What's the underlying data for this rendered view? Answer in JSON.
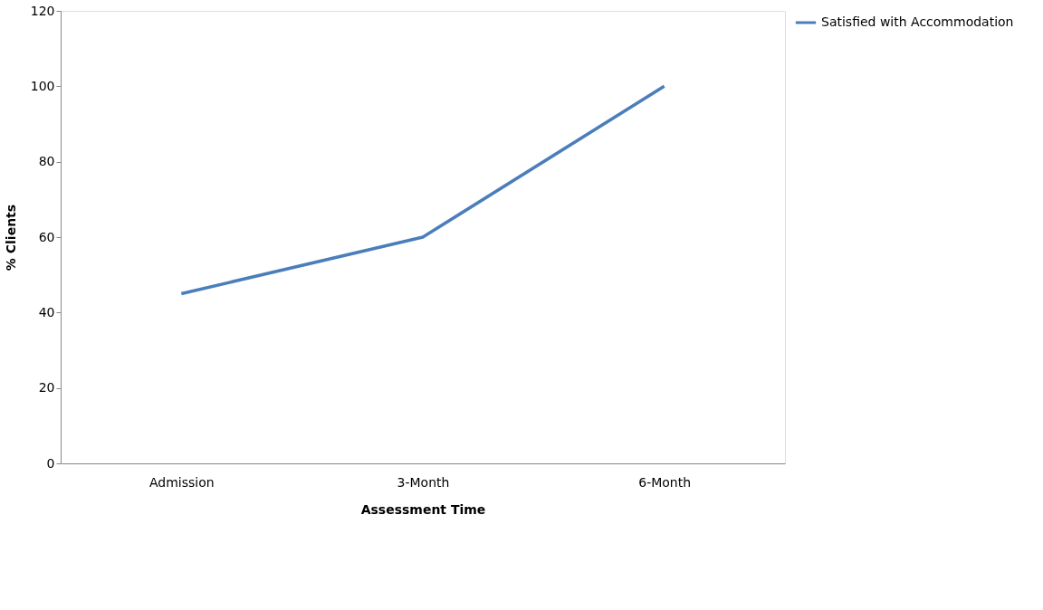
{
  "chart_data": {
    "type": "line",
    "xlabel": "Assessment Time",
    "ylabel": "% Clients",
    "categories": [
      "Admission",
      "3-Month",
      "6-Month"
    ],
    "series": [
      {
        "name": "Satisfied with Accommodation",
        "color": "#4a7ebb",
        "values": [
          45,
          60,
          100
        ]
      }
    ],
    "ylim": [
      0,
      120
    ],
    "yticks": [
      0,
      20,
      40,
      60,
      80,
      100,
      120
    ],
    "grid": false,
    "legend": "right",
    "marker": "none",
    "line_style": "solid"
  }
}
